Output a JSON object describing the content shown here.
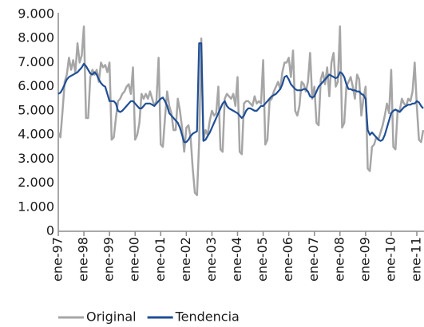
{
  "chart_data": {
    "type": "line",
    "categories": [
      "ene-97",
      null,
      null,
      null,
      null,
      null,
      null,
      null,
      null,
      null,
      null,
      null,
      "ene-98",
      null,
      null,
      null,
      null,
      null,
      null,
      null,
      null,
      null,
      null,
      null,
      "ene-99",
      null,
      null,
      null,
      null,
      null,
      null,
      null,
      null,
      null,
      null,
      null,
      "ene-00",
      null,
      null,
      null,
      null,
      null,
      null,
      null,
      null,
      null,
      null,
      null,
      "ene-01",
      null,
      null,
      null,
      null,
      null,
      null,
      null,
      null,
      null,
      null,
      null,
      "ene-02",
      null,
      null,
      null,
      null,
      null,
      null,
      null,
      null,
      null,
      null,
      null,
      "ene-03",
      null,
      null,
      null,
      null,
      null,
      null,
      null,
      null,
      null,
      null,
      null,
      "ene-04",
      null,
      null,
      null,
      null,
      null,
      null,
      null,
      null,
      null,
      null,
      null,
      "ene-05",
      null,
      null,
      null,
      null,
      null,
      null,
      null,
      null,
      null,
      null,
      null,
      "ene-06",
      null,
      null,
      null,
      null,
      null,
      null,
      null,
      null,
      null,
      null,
      null,
      "ene-07",
      null,
      null,
      null,
      null,
      null,
      null,
      null,
      null,
      null,
      null,
      null,
      "ene-08",
      null,
      null,
      null,
      null,
      null,
      null,
      null,
      null,
      null,
      null,
      null,
      "ene-09",
      null,
      null,
      null,
      null,
      null,
      null,
      null,
      null,
      null,
      null,
      null,
      "ene-10",
      null,
      null,
      null,
      null,
      null,
      null,
      null,
      null,
      null,
      null,
      null,
      "ene-11",
      null,
      null,
      null
    ],
    "series": [
      {
        "name": "Original",
        "color": "#a6a6a6",
        "values": [
          4100,
          3900,
          5000,
          6200,
          6500,
          7200,
          6700,
          7100,
          6600,
          7800,
          7000,
          7300,
          8500,
          4700,
          4700,
          6400,
          6700,
          6500,
          6700,
          6200,
          7000,
          6800,
          6900,
          6600,
          7000,
          3800,
          3900,
          4700,
          5400,
          5500,
          5700,
          5800,
          6000,
          6100,
          5700,
          6800,
          3800,
          4000,
          4500,
          5700,
          5500,
          5700,
          5500,
          5800,
          5500,
          5200,
          5400,
          7200,
          3600,
          3500,
          4700,
          5800,
          5200,
          4900,
          4200,
          4200,
          5500,
          5000,
          4300,
          3300,
          4300,
          4400,
          3900,
          2600,
          1600,
          1500,
          3700,
          8000,
          3800,
          4200,
          4000,
          4600,
          5000,
          4800,
          4900,
          6000,
          3400,
          3300,
          5500,
          5700,
          5600,
          5500,
          5700,
          5200,
          6400,
          3300,
          3200,
          5300,
          5400,
          5400,
          5300,
          5200,
          5600,
          5300,
          5400,
          5300,
          7100,
          3600,
          3800,
          5400,
          5500,
          5800,
          6000,
          6200,
          5900,
          6600,
          7000,
          7000,
          7200,
          6400,
          7500,
          5000,
          4800,
          5200,
          6200,
          6100,
          5800,
          6200,
          7400,
          5500,
          6000,
          4500,
          4400,
          6300,
          6600,
          6100,
          6800,
          5600,
          7000,
          7400,
          6000,
          6200,
          8500,
          4300,
          4500,
          6000,
          6200,
          6400,
          6000,
          5500,
          6500,
          6300,
          4800,
          5500,
          6000,
          2600,
          2500,
          3500,
          3600,
          3900,
          3800,
          4100,
          4400,
          4800,
          5300,
          4900,
          6700,
          3500,
          3400,
          5000,
          5000,
          5500,
          5300,
          5200,
          5500,
          5400,
          5800,
          7000,
          5200,
          3800,
          3700,
          4200
        ]
      },
      {
        "name": "Tendencia",
        "color": "#1f4e96",
        "values": [
          5700,
          5750,
          5900,
          6100,
          6300,
          6400,
          6450,
          6500,
          6550,
          6600,
          6700,
          6800,
          6950,
          6850,
          6700,
          6550,
          6500,
          6600,
          6500,
          6300,
          6150,
          6050,
          6000,
          5700,
          5400,
          5400,
          5400,
          5300,
          5000,
          4950,
          5000,
          5100,
          5200,
          5300,
          5400,
          5400,
          5300,
          5200,
          5100,
          5100,
          5200,
          5300,
          5300,
          5300,
          5250,
          5200,
          5300,
          5400,
          5500,
          5550,
          5400,
          5200,
          4900,
          4800,
          4700,
          4600,
          4500,
          4300,
          4000,
          3700,
          3700,
          3800,
          3950,
          4050,
          4100,
          4150,
          7800,
          7800,
          3750,
          3800,
          3950,
          4100,
          4300,
          4500,
          4700,
          4900,
          5100,
          5300,
          5400,
          5200,
          5100,
          5050,
          5000,
          4950,
          4900,
          4800,
          4700,
          4800,
          5000,
          5100,
          5100,
          5050,
          5000,
          5000,
          5100,
          5200,
          5200,
          5300,
          5400,
          5500,
          5600,
          5650,
          5700,
          5800,
          5900,
          6100,
          6400,
          6450,
          6300,
          6100,
          6000,
          5900,
          5850,
          5850,
          5850,
          5900,
          5900,
          5800,
          5600,
          5550,
          5600,
          5800,
          6000,
          6100,
          6200,
          6300,
          6400,
          6500,
          6450,
          6400,
          6350,
          6400,
          6600,
          6550,
          6400,
          6100,
          5900,
          5900,
          5850,
          5850,
          5800,
          5800,
          5700,
          5650,
          5500,
          4200,
          4000,
          4100,
          4000,
          3900,
          3800,
          3750,
          3800,
          4000,
          4300,
          4600,
          4900,
          5000,
          5050,
          5000,
          4950,
          5050,
          5150,
          5200,
          5250,
          5250,
          5300,
          5300,
          5400,
          5350,
          5200,
          5100
        ]
      }
    ],
    "ylim": [
      0,
      9000
    ],
    "yticks": [
      0,
      {
        "value": 1000,
        "label": "1.000"
      },
      {
        "value": 2000,
        "label": "2.000"
      },
      {
        "value": 3000,
        "label": "3.000"
      },
      {
        "value": 4000,
        "label": "4.000"
      },
      {
        "value": 5000,
        "label": "5.000"
      },
      {
        "value": 6000,
        "label": "6.000"
      },
      {
        "value": 7000,
        "label": "7.000"
      },
      {
        "value": 8000,
        "label": "8.000"
      },
      {
        "value": 9000,
        "label": "9.000"
      }
    ],
    "grid": false,
    "legend": "bottom"
  }
}
